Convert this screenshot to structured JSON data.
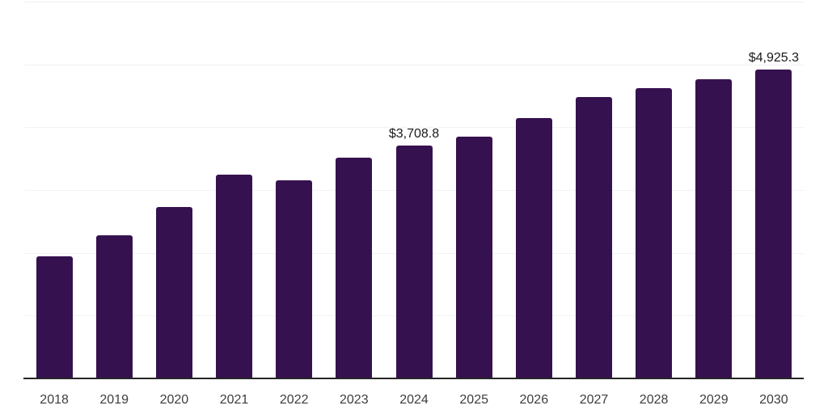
{
  "chart_data": {
    "type": "bar",
    "title": "",
    "xlabel": "",
    "ylabel": "",
    "categories": [
      "2018",
      "2019",
      "2020",
      "2021",
      "2022",
      "2023",
      "2024",
      "2025",
      "2026",
      "2027",
      "2028",
      "2029",
      "2030"
    ],
    "values": [
      1945,
      2280,
      2730,
      3245,
      3150,
      3515,
      3708.8,
      3850,
      4145,
      4480,
      4620,
      4765,
      4925.3
    ],
    "data_labels": {
      "2024": "$3,708.8",
      "2030": "$4,925.3"
    },
    "ylim": [
      0,
      6000
    ],
    "gridline_values": [
      1000,
      2000,
      3000,
      4000,
      5000,
      6000
    ],
    "grid": "horizontal",
    "legend_position": "none",
    "colors": {
      "bar": "#36114F",
      "gridline": "#F2F2F2",
      "axis": "#262626",
      "tick_label": "#3D3D3D",
      "data_label": "#1A1A1A",
      "background": "#FFFFFF"
    }
  }
}
